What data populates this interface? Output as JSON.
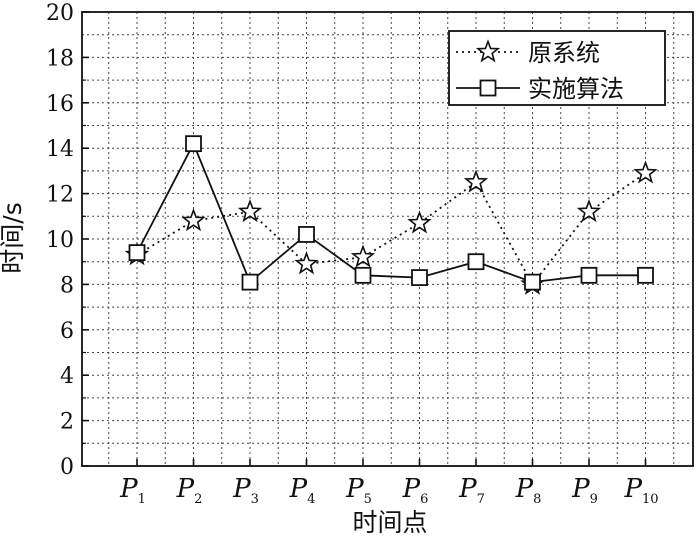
{
  "chart_data": {
    "type": "line",
    "xlabel": "时间点",
    "ylabel": "时间/s",
    "categories": [
      {
        "main": "P",
        "sub": "1"
      },
      {
        "main": "P",
        "sub": "2"
      },
      {
        "main": "P",
        "sub": "3"
      },
      {
        "main": "P",
        "sub": "4"
      },
      {
        "main": "P",
        "sub": "5"
      },
      {
        "main": "P",
        "sub": "6"
      },
      {
        "main": "P",
        "sub": "7"
      },
      {
        "main": "P",
        "sub": "8"
      },
      {
        "main": "P",
        "sub": "9"
      },
      {
        "main": "P",
        "sub": "10"
      }
    ],
    "y_ticks": [
      "0",
      "2",
      "4",
      "6",
      "8",
      "10",
      "12",
      "14",
      "16",
      "18",
      "20"
    ],
    "ylim": [
      0,
      20
    ],
    "grid": true,
    "legend_position": "top-right",
    "series": [
      {
        "name": "原系统",
        "marker": "star",
        "line_style": "dotted",
        "color": "#111111",
        "values": [
          9.3,
          10.8,
          11.2,
          8.9,
          9.2,
          10.7,
          12.5,
          8.0,
          11.2,
          12.9
        ]
      },
      {
        "name": "实施算法",
        "marker": "square",
        "line_style": "solid",
        "color": "#111111",
        "values": [
          9.4,
          14.2,
          8.1,
          10.2,
          8.4,
          8.3,
          9.0,
          8.1,
          8.4,
          8.4
        ]
      }
    ]
  }
}
